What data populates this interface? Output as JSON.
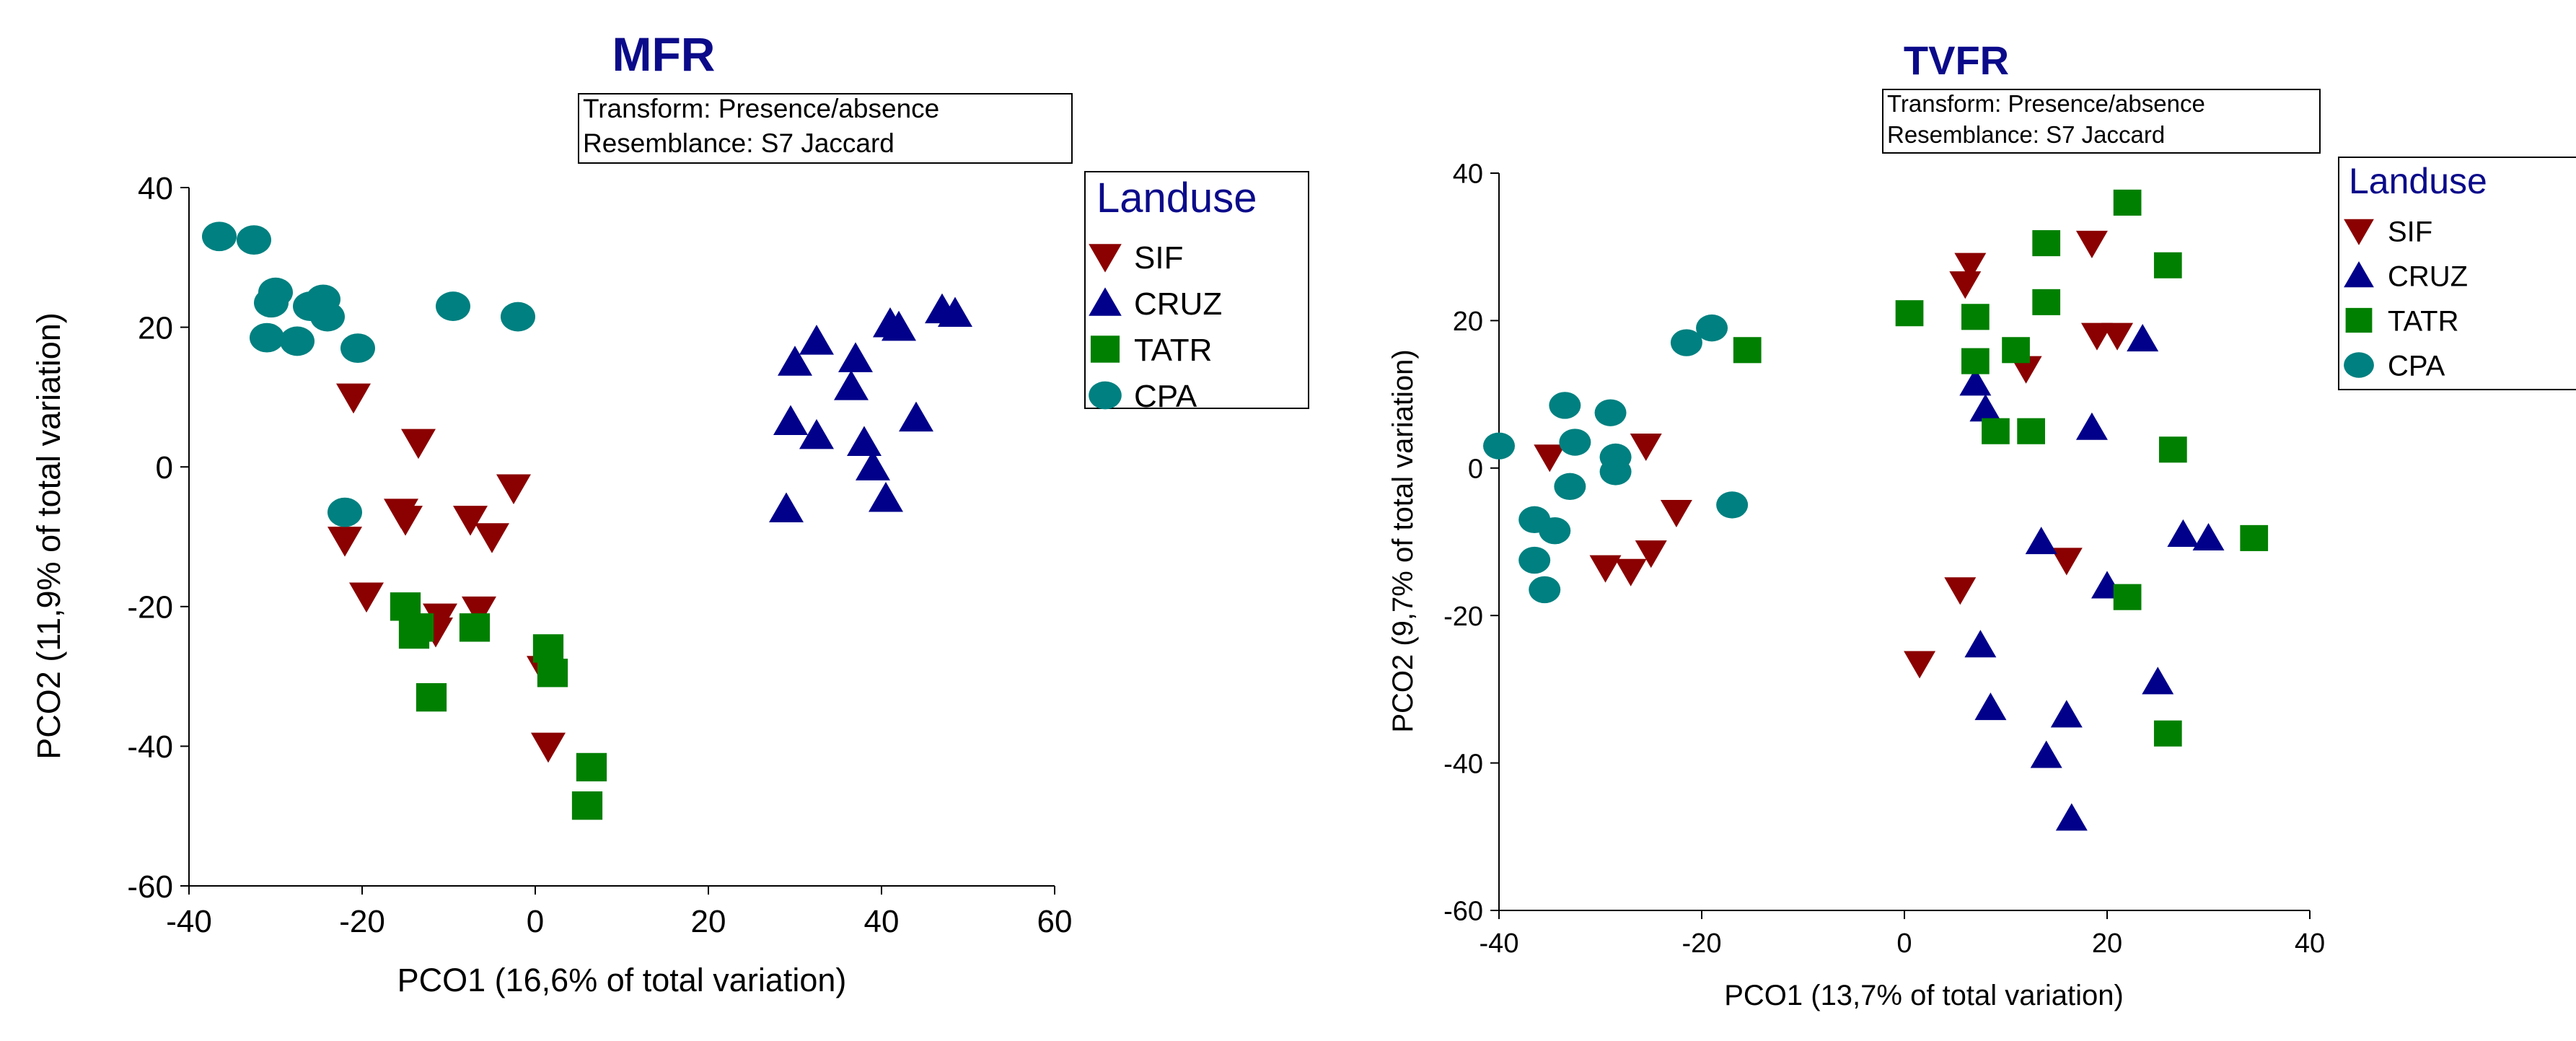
{
  "chart_data": [
    {
      "type": "scatter",
      "title": "MFR",
      "xlabel": "PCO1 (16,6% of total variation)",
      "ylabel": "PCO2 (11,9% of total variation)",
      "xlim": [
        -40,
        60
      ],
      "ylim": [
        -60,
        40
      ],
      "xticks": [
        "-40",
        "-20",
        "0",
        "20",
        "40",
        "60"
      ],
      "yticks": [
        "40",
        "20",
        "0",
        "-20",
        "-40",
        "-60"
      ],
      "annotation": [
        "Transform: Presence/absence",
        "Resemblance: S7 Jaccard"
      ],
      "legend_title": "Landuse",
      "legend_placement": "top-right",
      "series": [
        {
          "name": "SIF",
          "marker": "triangle-down",
          "color": "#8b0000",
          "points": [
            [
              -21,
              10
            ],
            [
              -13.5,
              3.5
            ],
            [
              -22,
              -10.5
            ],
            [
              -15.5,
              -6.5
            ],
            [
              -15,
              -7.5
            ],
            [
              -7.5,
              -7.5
            ],
            [
              -2.5,
              -3
            ],
            [
              -5,
              -10
            ],
            [
              -19.5,
              -18.5
            ],
            [
              -11,
              -21.5
            ],
            [
              -6.5,
              -20.5
            ],
            [
              -11.5,
              -23.5
            ],
            [
              1,
              -29
            ],
            [
              1.5,
              -40
            ]
          ]
        },
        {
          "name": "CRUZ",
          "marker": "triangle-up",
          "color": "#00008b",
          "points": [
            [
              32.5,
              18
            ],
            [
              30,
              15
            ],
            [
              37,
              15.5
            ],
            [
              36.5,
              11.5
            ],
            [
              41,
              20.5
            ],
            [
              42,
              20
            ],
            [
              47,
              22.5
            ],
            [
              48.5,
              22
            ],
            [
              29.5,
              6.5
            ],
            [
              32.5,
              4.5
            ],
            [
              38,
              3.5
            ],
            [
              39,
              0
            ],
            [
              44,
              7
            ],
            [
              40.5,
              -4.5
            ],
            [
              29,
              -6
            ]
          ]
        },
        {
          "name": "TATR",
          "marker": "square",
          "color": "#008000",
          "points": [
            [
              -15,
              -20
            ],
            [
              -13.5,
              -23
            ],
            [
              -14,
              -24
            ],
            [
              -7,
              -23
            ],
            [
              -12,
              -33
            ],
            [
              1.5,
              -26
            ],
            [
              2,
              -29.5
            ],
            [
              6.5,
              -43
            ],
            [
              6,
              -48.5
            ]
          ]
        },
        {
          "name": "CPA",
          "marker": "circle",
          "color": "#008080",
          "points": [
            [
              -36.5,
              33
            ],
            [
              -32.5,
              32.5
            ],
            [
              -30,
              25
            ],
            [
              -30.5,
              23.5
            ],
            [
              -24.5,
              24
            ],
            [
              -26,
              23
            ],
            [
              -24,
              21.5
            ],
            [
              -9.5,
              23
            ],
            [
              -2,
              21.5
            ],
            [
              -31,
              18.5
            ],
            [
              -27.5,
              18
            ],
            [
              -20.5,
              17
            ],
            [
              -22,
              -6.5
            ]
          ]
        }
      ]
    },
    {
      "type": "scatter",
      "title": "TVFR",
      "xlabel": "PCO1 (13,7% of total variation)",
      "ylabel": "PCO2 (9,7% of total variation)",
      "xlim": [
        -40,
        40
      ],
      "ylim": [
        -60,
        40
      ],
      "xticks": [
        "-40",
        "-20",
        "0",
        "20",
        "40"
      ],
      "yticks": [
        "40",
        "20",
        "0",
        "-20",
        "-40",
        "-60"
      ],
      "annotation": [
        "Transform: Presence/absence",
        "Resemblance: S7 Jaccard"
      ],
      "legend_title": "Landuse",
      "legend_placement": "top-right",
      "series": [
        {
          "name": "SIF",
          "marker": "triangle-down",
          "color": "#8b0000",
          "points": [
            [
              -35,
              1.5
            ],
            [
              -25.5,
              3
            ],
            [
              -25,
              -11.5
            ],
            [
              -22.5,
              -6
            ],
            [
              -29.5,
              -13.5
            ],
            [
              -27,
              -14
            ],
            [
              6.5,
              27.5
            ],
            [
              6,
              25
            ],
            [
              18.5,
              30.5
            ],
            [
              12,
              13.5
            ],
            [
              19,
              18
            ],
            [
              21,
              18
            ],
            [
              5.5,
              -16.5
            ],
            [
              16,
              -12.5
            ],
            [
              1.5,
              -26.5
            ]
          ]
        },
        {
          "name": "CRUZ",
          "marker": "triangle-up",
          "color": "#00008b",
          "points": [
            [
              7,
              11.5
            ],
            [
              8,
              8
            ],
            [
              23.5,
              17.5
            ],
            [
              18.5,
              5.5
            ],
            [
              13.5,
              -10
            ],
            [
              20,
              -16
            ],
            [
              27.5,
              -9
            ],
            [
              30,
              -9.5
            ],
            [
              7.5,
              -24
            ],
            [
              25,
              -29
            ],
            [
              8.5,
              -32.5
            ],
            [
              16,
              -33.5
            ],
            [
              14,
              -39
            ],
            [
              16.5,
              -47.5
            ]
          ]
        },
        {
          "name": "TATR",
          "marker": "square",
          "color": "#008000",
          "points": [
            [
              22,
              36
            ],
            [
              14,
              30.5
            ],
            [
              26,
              27.5
            ],
            [
              0.5,
              21
            ],
            [
              7,
              20.5
            ],
            [
              14,
              22.5
            ],
            [
              11,
              16
            ],
            [
              7,
              14.5
            ],
            [
              -15.5,
              16
            ],
            [
              9,
              5
            ],
            [
              12.5,
              5
            ],
            [
              26.5,
              2.5
            ],
            [
              34.5,
              -9.5
            ],
            [
              22,
              -17.5
            ],
            [
              26,
              -36
            ]
          ]
        },
        {
          "name": "CPA",
          "marker": "circle",
          "color": "#008080",
          "points": [
            [
              -21.5,
              17
            ],
            [
              -19,
              19
            ],
            [
              -33.5,
              8.5
            ],
            [
              -29,
              7.5
            ],
            [
              -32.5,
              3.5
            ],
            [
              -40,
              3
            ],
            [
              -28.5,
              1.5
            ],
            [
              -28.5,
              -0.5
            ],
            [
              -33,
              -2.5
            ],
            [
              -17,
              -5
            ],
            [
              -36.5,
              -7
            ],
            [
              -34.5,
              -8.5
            ],
            [
              -36.5,
              -12.5
            ],
            [
              -35.5,
              -16.5
            ]
          ]
        }
      ]
    }
  ]
}
